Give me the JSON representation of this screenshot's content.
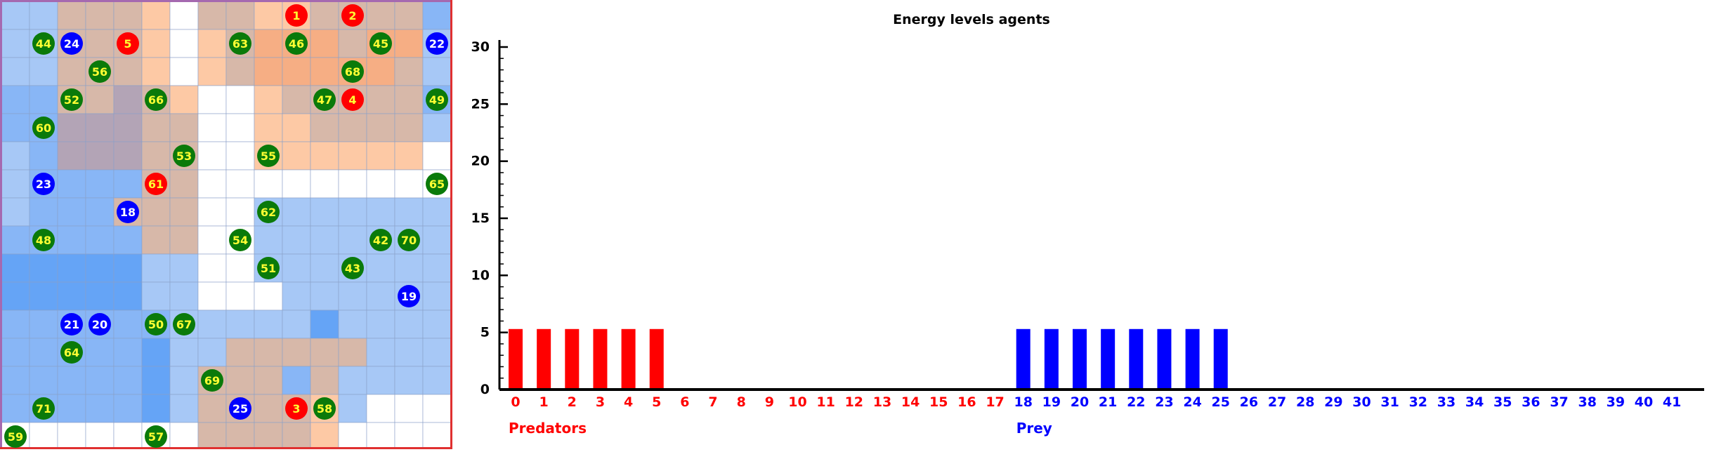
{
  "grid": {
    "cols": 16,
    "rows": 16,
    "colors": {
      "white": "#ffffff",
      "light_blue": "#a7c8f6",
      "mid_blue": "#88b6f6",
      "deep_blue": "#65a4f6",
      "peach": "#fdc9a5",
      "orange": "#f6ae84",
      "tan": "#d7b8a9",
      "mauve": "#b3a4b6",
      "gridline": "#8aa0c8",
      "predator": "#ff0000",
      "prey": "#0000ff",
      "plant": "#0a7a0a",
      "predator_label": "#ffff33",
      "prey_label": "#ffffff",
      "plant_label": "#ffff33",
      "left_border": "#a569b0",
      "right_border": "#e03030"
    },
    "cells": [
      "LLTTTPWTTPPTTTTM",
      "LLTTTPWPTOOOTOOL",
      "LLTTTPWPTOOOOOTL",
      "MMTTMTPWWPTTTTTM",
      "MMMMMTTWWPPTTTTL",
      "LMMMMTTWWPPPPPPW",
      "LMMMMTTWWWWWWWWW",
      "LMMMTTTWWLLLLLLL",
      "MMMMMTTWWLLLLLLL",
      "DDDDDLLWWLLLLLLL",
      "DDDDDLLWWWLLLLLL",
      "MMMMMMLLLLLDLLLL",
      "MMMMMDLLTTTTTLLL",
      "MMMMMDLTTTMTLLLL",
      "MMMMMDLTTTTPLWWW",
      "WWWWWWWTTTTPWWWW"
    ],
    "agents": [
      {
        "id": "1",
        "kind": "predator",
        "col": 10,
        "row": 0
      },
      {
        "id": "2",
        "kind": "predator",
        "col": 12,
        "row": 0
      },
      {
        "id": "44",
        "kind": "plant",
        "col": 1,
        "row": 1
      },
      {
        "id": "24",
        "kind": "prey",
        "col": 2,
        "row": 1
      },
      {
        "id": "5",
        "kind": "predator",
        "col": 4,
        "row": 1
      },
      {
        "id": "63",
        "kind": "plant",
        "col": 8,
        "row": 1
      },
      {
        "id": "46",
        "kind": "plant",
        "col": 10,
        "row": 1
      },
      {
        "id": "45",
        "kind": "plant",
        "col": 13,
        "row": 1
      },
      {
        "id": "22",
        "kind": "prey",
        "col": 15,
        "row": 1
      },
      {
        "id": "56",
        "kind": "plant",
        "col": 3,
        "row": 2
      },
      {
        "id": "68",
        "kind": "plant",
        "col": 12,
        "row": 2
      },
      {
        "id": "52",
        "kind": "plant",
        "col": 2,
        "row": 3
      },
      {
        "id": "66",
        "kind": "plant",
        "col": 5,
        "row": 3
      },
      {
        "id": "47",
        "kind": "plant",
        "col": 11,
        "row": 3
      },
      {
        "id": "4",
        "kind": "predator",
        "col": 12,
        "row": 3
      },
      {
        "id": "49",
        "kind": "plant",
        "col": 15,
        "row": 3
      },
      {
        "id": "60",
        "kind": "plant",
        "col": 1,
        "row": 4
      },
      {
        "id": "53",
        "kind": "plant",
        "col": 6,
        "row": 5
      },
      {
        "id": "55",
        "kind": "plant",
        "col": 9,
        "row": 5
      },
      {
        "id": "23",
        "kind": "prey",
        "col": 1,
        "row": 6
      },
      {
        "id": "61",
        "kind": "predator",
        "col": 5,
        "row": 6
      },
      {
        "id": "65",
        "kind": "plant",
        "col": 15,
        "row": 6
      },
      {
        "id": "18",
        "kind": "prey",
        "col": 4,
        "row": 7
      },
      {
        "id": "62",
        "kind": "plant",
        "col": 9,
        "row": 7
      },
      {
        "id": "48",
        "kind": "plant",
        "col": 1,
        "row": 8
      },
      {
        "id": "54",
        "kind": "plant",
        "col": 8,
        "row": 8
      },
      {
        "id": "42",
        "kind": "plant",
        "col": 13,
        "row": 8
      },
      {
        "id": "70",
        "kind": "plant",
        "col": 14,
        "row": 8
      },
      {
        "id": "51",
        "kind": "plant",
        "col": 9,
        "row": 9
      },
      {
        "id": "43",
        "kind": "plant",
        "col": 12,
        "row": 9
      },
      {
        "id": "19",
        "kind": "prey",
        "col": 14,
        "row": 10
      },
      {
        "id": "21",
        "kind": "prey",
        "col": 2,
        "row": 11
      },
      {
        "id": "20",
        "kind": "prey",
        "col": 3,
        "row": 11
      },
      {
        "id": "50",
        "kind": "plant",
        "col": 5,
        "row": 11
      },
      {
        "id": "67",
        "kind": "plant",
        "col": 6,
        "row": 11
      },
      {
        "id": "64",
        "kind": "plant",
        "col": 2,
        "row": 12
      },
      {
        "id": "69",
        "kind": "plant",
        "col": 7,
        "row": 13
      },
      {
        "id": "71",
        "kind": "plant",
        "col": 1,
        "row": 14
      },
      {
        "id": "25",
        "kind": "prey",
        "col": 8,
        "row": 14
      },
      {
        "id": "3",
        "kind": "predator",
        "col": 10,
        "row": 14
      },
      {
        "id": "58",
        "kind": "plant",
        "col": 11,
        "row": 14
      },
      {
        "id": "59",
        "kind": "plant",
        "col": 0,
        "row": 15
      },
      {
        "id": "57",
        "kind": "plant",
        "col": 5,
        "row": 15
      }
    ]
  },
  "chart_data": {
    "type": "bar",
    "title": "Energy levels agents",
    "xlabel": "",
    "ylabel": "",
    "ylim": [
      0,
      30
    ],
    "y_ticks": [
      0,
      5,
      10,
      15,
      20,
      25,
      30
    ],
    "y_minor_step": 1,
    "grid": false,
    "categories": [
      "0",
      "1",
      "2",
      "3",
      "4",
      "5",
      "6",
      "7",
      "8",
      "9",
      "10",
      "11",
      "12",
      "13",
      "14",
      "15",
      "16",
      "17",
      "18",
      "19",
      "20",
      "21",
      "22",
      "23",
      "24",
      "25",
      "26",
      "27",
      "28",
      "29",
      "30",
      "31",
      "32",
      "33",
      "34",
      "35",
      "36",
      "37",
      "38",
      "39",
      "40",
      "41"
    ],
    "values": [
      5.3,
      5.3,
      5.3,
      5.3,
      5.3,
      5.3,
      0,
      0,
      0,
      0,
      0,
      0,
      0,
      0,
      0,
      0,
      0,
      0,
      5.3,
      5.3,
      5.3,
      5.3,
      5.3,
      5.3,
      5.3,
      5.3,
      0,
      0,
      0,
      0,
      0,
      0,
      0,
      0,
      0,
      0,
      0,
      0,
      0,
      0,
      0,
      0
    ],
    "groups": [
      {
        "name": "Predators",
        "from": 0,
        "to": 17,
        "color": "#ff0000"
      },
      {
        "name": "Prey",
        "from": 18,
        "to": 41,
        "color": "#0000ff"
      }
    ]
  }
}
